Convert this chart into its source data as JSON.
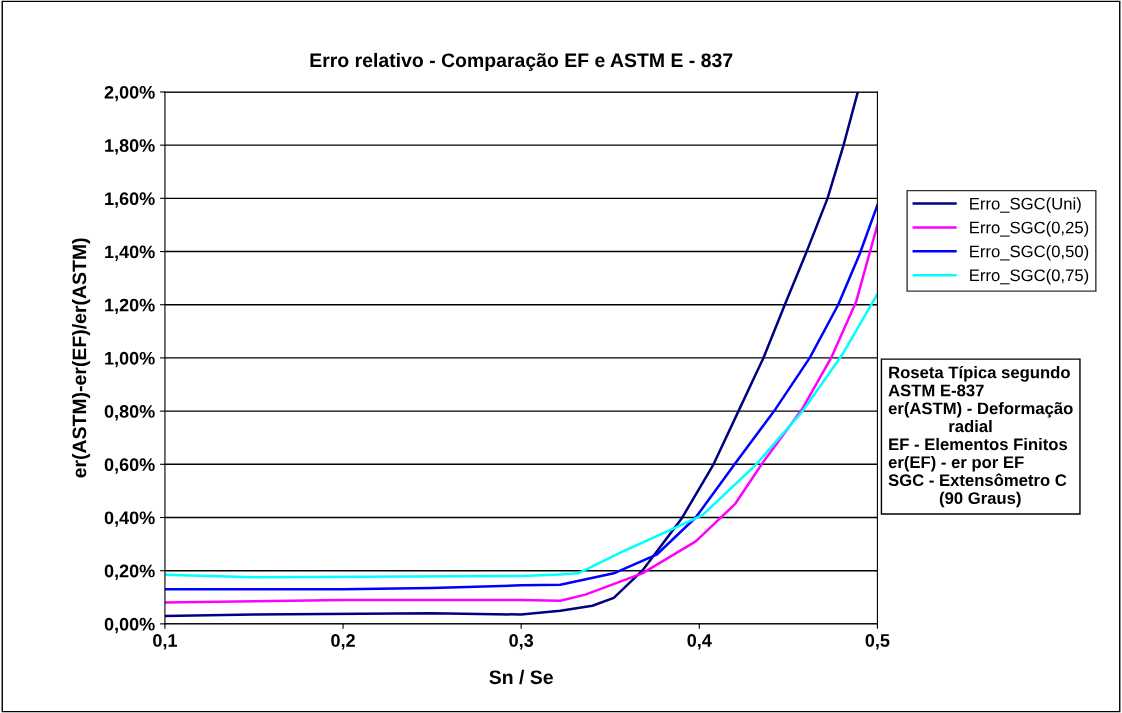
{
  "chart_data": {
    "type": "line",
    "title": "Erro relativo - Comparação EF e ASTM E - 837",
    "xlabel": "Sn / Se",
    "ylabel": "er(ASTM)-er(EF)/er(ASTM)",
    "xlim": [
      0.1,
      0.5
    ],
    "xticks": [
      {
        "value": 0.1,
        "label": "0,1"
      },
      {
        "value": 0.2,
        "label": "0,2"
      },
      {
        "value": 0.3,
        "label": "0,3"
      },
      {
        "value": 0.4,
        "label": "0,4"
      },
      {
        "value": 0.5,
        "label": "0,5"
      }
    ],
    "ylim": [
      0,
      2
    ],
    "yticks": [
      {
        "value": 0,
        "label": "0,00%"
      },
      {
        "value": 0.2,
        "label": "0,20%"
      },
      {
        "value": 0.4,
        "label": "0,40%"
      },
      {
        "value": 0.6,
        "label": "0,60%"
      },
      {
        "value": 0.8,
        "label": "0,80%"
      },
      {
        "value": 1.0,
        "label": "1,00%"
      },
      {
        "value": 1.2,
        "label": "1,20%"
      },
      {
        "value": 1.4,
        "label": "1,40%"
      },
      {
        "value": 1.6,
        "label": "1,60%"
      },
      {
        "value": 1.8,
        "label": "1,80%"
      },
      {
        "value": 2.0,
        "label": "2,00%"
      }
    ],
    "grid": "y",
    "legend": "right",
    "marker": "none",
    "line_style": "solid",
    "series": [
      {
        "name": "Erro_SGC(Uni)",
        "color": "#000080",
        "x": [
          0.1,
          0.15,
          0.25,
          0.3,
          0.322,
          0.34,
          0.352,
          0.368,
          0.39,
          0.408,
          0.422,
          0.436,
          0.448,
          0.46,
          0.472,
          0.481,
          0.489
        ],
        "values": [
          0.03,
          0.035,
          0.04,
          0.035,
          0.049,
          0.068,
          0.098,
          0.2,
          0.395,
          0.6,
          0.8,
          1.0,
          1.2,
          1.395,
          1.6,
          1.8,
          2.0
        ]
      },
      {
        "name": "Erro_SGC(0,25)",
        "color": "#ff00ff",
        "x": [
          0.1,
          0.15,
          0.2,
          0.3,
          0.322,
          0.336,
          0.368,
          0.398,
          0.42,
          0.436,
          0.458,
          0.474,
          0.488,
          0.5
        ],
        "values": [
          0.08,
          0.085,
          0.09,
          0.09,
          0.087,
          0.11,
          0.19,
          0.31,
          0.45,
          0.61,
          0.81,
          1.0,
          1.21,
          1.5
        ]
      },
      {
        "name": "Erro_SGC(0,50)",
        "color": "#0000ff",
        "x": [
          0.1,
          0.2,
          0.25,
          0.3,
          0.322,
          0.352,
          0.376,
          0.398,
          0.422,
          0.442,
          0.462,
          0.478,
          0.49,
          0.5
        ],
        "values": [
          0.13,
          0.13,
          0.135,
          0.145,
          0.147,
          0.19,
          0.26,
          0.4,
          0.62,
          0.8,
          1.0,
          1.2,
          1.39,
          1.575
        ]
      },
      {
        "name": "Erro_SGC(0,75)",
        "color": "#00ffff",
        "x": [
          0.1,
          0.15,
          0.3,
          0.322,
          0.332,
          0.358,
          0.386,
          0.402,
          0.432,
          0.458,
          0.48,
          0.5
        ],
        "values": [
          0.185,
          0.175,
          0.18,
          0.186,
          0.19,
          0.275,
          0.36,
          0.41,
          0.6,
          0.8,
          1.01,
          1.24
        ]
      }
    ],
    "annotations": [
      "Roseta Típica segundo\nASTM E-837\ner(ASTM) - Deformação\n             radial\nEF - Elementos Finitos\ner(EF) - er por EF\nSGC - Extensômetro C\n           (90 Graus)"
    ]
  }
}
